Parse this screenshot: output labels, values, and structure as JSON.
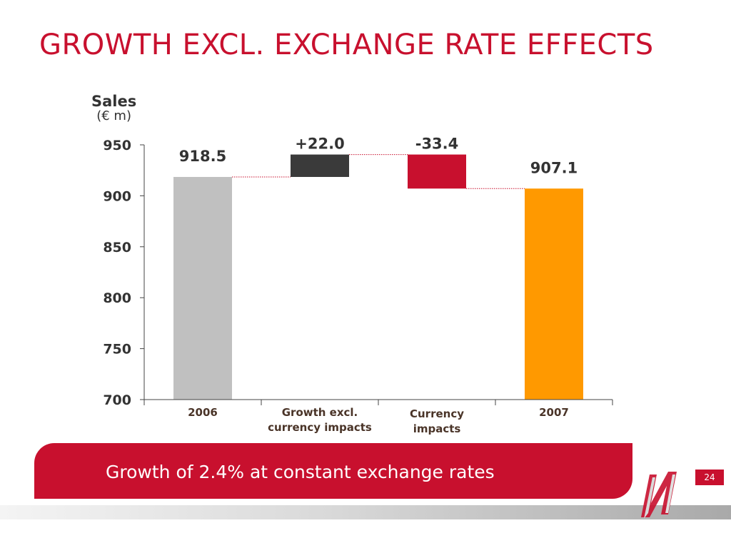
{
  "title": "GROWTH EXCL. EXCHANGE RATE EFFECTS",
  "footer": {
    "banner_text": "Growth of 2.4% at constant exchange rates",
    "page_number": "24"
  },
  "colors": {
    "brand_red": "#c8102e",
    "bar_2006": "#c0c0c0",
    "bar_growth": "#3a3a3a",
    "bar_currency": "#c8102e",
    "bar_2007": "#ff9900",
    "connector": "#c8102e"
  },
  "chart_data": {
    "type": "bar",
    "subtype": "waterfall",
    "ylabel": "Sales",
    "yunit": "(€ m)",
    "ylim": [
      700,
      950
    ],
    "yticks": [
      700,
      750,
      800,
      850,
      900,
      950
    ],
    "grid": false,
    "categories": [
      "2006",
      "Growth excl. currency impacts",
      "Currency impacts",
      "2007"
    ],
    "category_lines": [
      [
        "2006"
      ],
      [
        "Growth excl.",
        "currency impacts"
      ],
      [
        "Currency",
        "impacts"
      ],
      [
        "2007"
      ]
    ],
    "values": [
      918.5,
      22.0,
      -33.4,
      907.1
    ],
    "bar_kind": [
      "total",
      "delta",
      "delta",
      "total"
    ],
    "data_labels": [
      "918.5",
      "+22.0",
      "-33.4",
      "907.1"
    ]
  }
}
